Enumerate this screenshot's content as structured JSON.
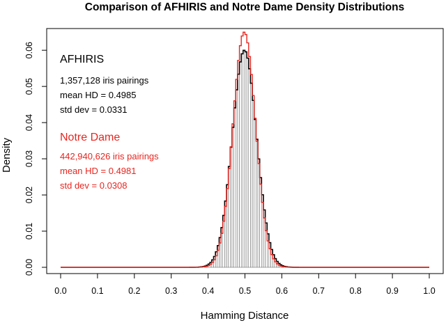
{
  "chart_data": {
    "type": "histogram",
    "title": "Comparison of AFHIRIS and Notre Dame Density Distributions",
    "xlabel": "Hamming Distance",
    "ylabel": "Density",
    "xlim": [
      0.0,
      1.0
    ],
    "ylim": [
      0.0,
      0.066
    ],
    "x_ticks": [
      "0.0",
      "0.1",
      "0.2",
      "0.3",
      "0.4",
      "0.5",
      "0.6",
      "0.7",
      "0.8",
      "0.9",
      "1.0"
    ],
    "y_ticks": [
      "0.00",
      "0.01",
      "0.02",
      "0.03",
      "0.04",
      "0.05",
      "0.06"
    ],
    "grid": false,
    "series": [
      {
        "name": "AFHIRIS",
        "color": "#000000",
        "style": "filled-bars-with-step-outline",
        "mean": 0.4985,
        "std": 0.0331
      },
      {
        "name": "Notre Dame",
        "color": "#e8251f",
        "style": "step-outline",
        "mean": 0.4981,
        "std": 0.0308
      }
    ],
    "peak_density": {
      "AFHIRIS": 0.06,
      "Notre Dame": 0.065
    },
    "bin_width": 0.005
  },
  "annotations": {
    "afhiris": {
      "name": "AFHIRIS",
      "pairings": "1,357,128 iris pairings",
      "mean": "mean HD =  0.4985",
      "std": "std dev =  0.0331",
      "color": "#000000"
    },
    "notre_dame": {
      "name": "Notre Dame",
      "pairings": "442,940,626 iris pairings",
      "mean": "mean HD =  0.4981",
      "std": "std dev =  0.0308",
      "color": "#e8251f"
    }
  }
}
